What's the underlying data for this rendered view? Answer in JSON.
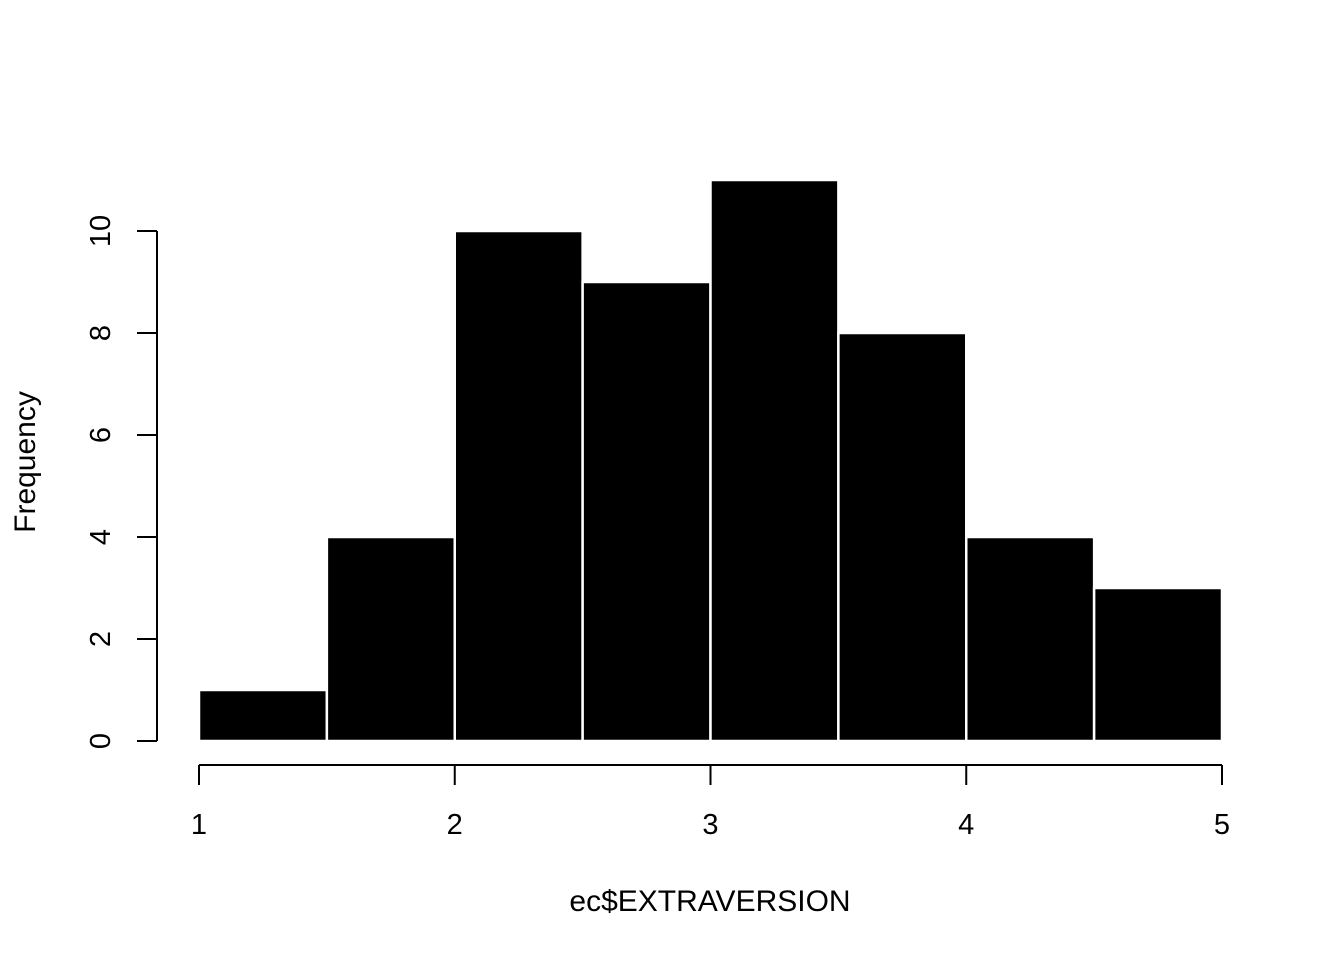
{
  "chart_data": {
    "type": "bar",
    "subtype": "histogram",
    "xlabel": "ec$EXTRAVERSION",
    "ylabel": "Frequency",
    "bins": [
      {
        "from": 1.0,
        "to": 1.5,
        "count": 1
      },
      {
        "from": 1.5,
        "to": 2.0,
        "count": 4
      },
      {
        "from": 2.0,
        "to": 2.5,
        "count": 10
      },
      {
        "from": 2.5,
        "to": 3.0,
        "count": 9
      },
      {
        "from": 3.0,
        "to": 3.5,
        "count": 11
      },
      {
        "from": 3.5,
        "to": 4.0,
        "count": 8
      },
      {
        "from": 4.0,
        "to": 4.5,
        "count": 4
      },
      {
        "from": 4.5,
        "to": 5.0,
        "count": 3
      }
    ],
    "xlim": [
      1,
      5
    ],
    "ylim": [
      0,
      11
    ],
    "xticks": [
      "1",
      "2",
      "3",
      "4",
      "5"
    ],
    "yticks": [
      "0",
      "2",
      "4",
      "6",
      "8",
      "10"
    ],
    "bar_color": "#000000",
    "bar_border_color": "#ffffff",
    "grid": false,
    "legend": "none"
  }
}
